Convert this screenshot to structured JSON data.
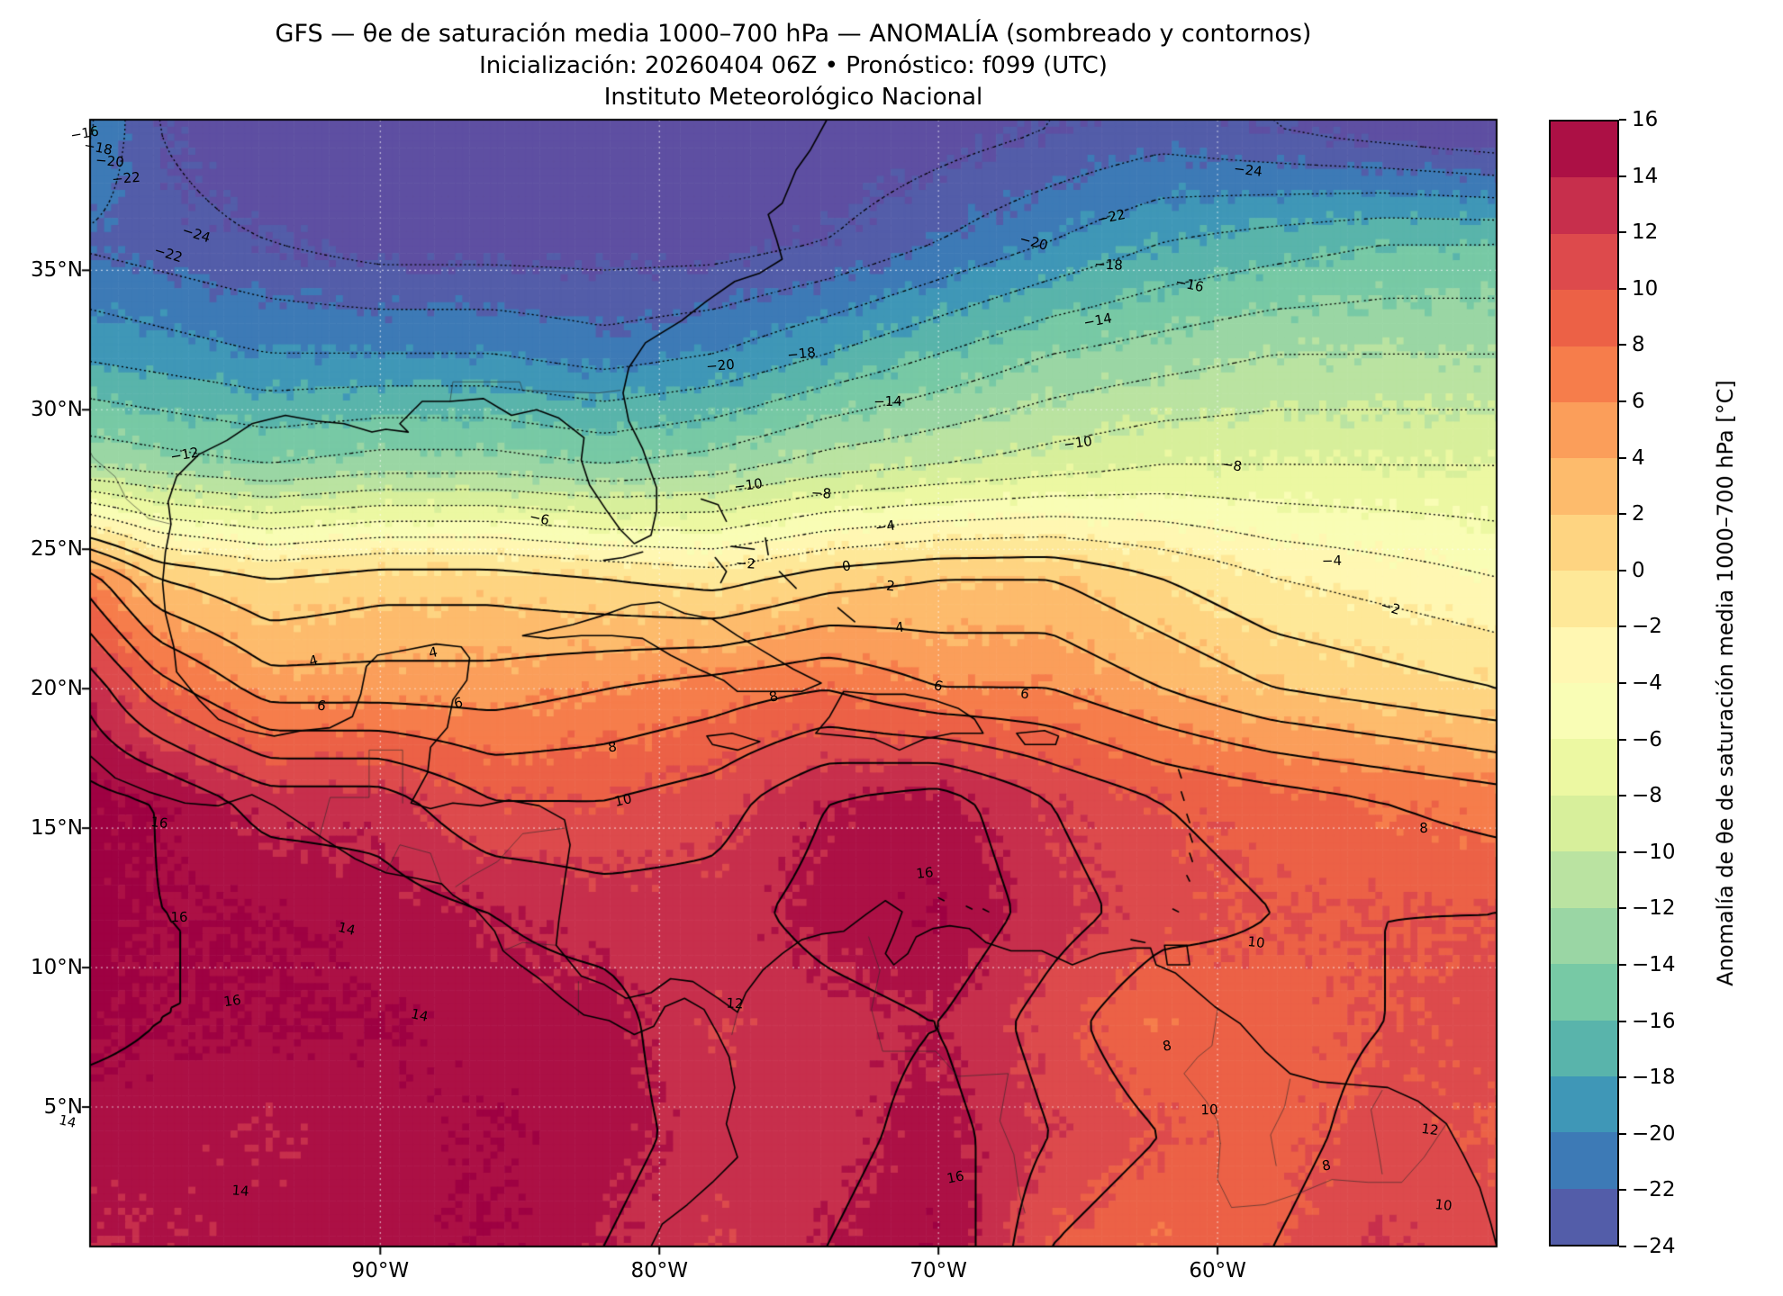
{
  "header": {
    "title": "GFS — θe de saturación media 1000–700 hPa — ANOMALÍA (sombreado y contornos)",
    "subtitle": "Inicialización: 20260404 06Z   •   Pronóstico: f099 (UTC)",
    "institution": "Instituto Meteorológico Nacional"
  },
  "chart_data": {
    "type": "heatmap",
    "title": "GFS — θe de saturación media 1000–700 hPa — ANOMALÍA (sombreado y contornos)",
    "x": {
      "ticks": [
        "90°W",
        "80°W",
        "70°W",
        "60°W"
      ],
      "tick_lons": [
        -90,
        -80,
        -70,
        -60
      ],
      "range": [
        -100.4,
        -50.0
      ]
    },
    "y": {
      "ticks": [
        "35°N",
        "30°N",
        "25°N",
        "20°N",
        "15°N",
        "10°N",
        "5°N"
      ],
      "tick_lats": [
        35,
        30,
        25,
        20,
        15,
        10,
        5
      ],
      "range": [
        0,
        40.4
      ]
    },
    "colorbar": {
      "label": "Anomalía de θe de saturación media 1000–700 hPa [°C]",
      "levels": [
        -24,
        -22,
        -20,
        -18,
        -16,
        -14,
        -12,
        -10,
        -8,
        -6,
        -4,
        -2,
        0,
        2,
        4,
        6,
        8,
        10,
        12,
        14,
        16
      ],
      "tick_labels": [
        "−24",
        "−22",
        "−20",
        "−18",
        "−16",
        "−14",
        "−12",
        "−10",
        "−8",
        "−6",
        "−4",
        "−2",
        "0",
        "2",
        "4",
        "6",
        "8",
        "10",
        "12",
        "14",
        "16"
      ],
      "colors": [
        "#535DA9",
        "#3D7AB6",
        "#3F97B7",
        "#59B4AB",
        "#77C9A5",
        "#9AD6A4",
        "#BAE3A1",
        "#D7EF9B",
        "#ECF8A2",
        "#F9FDB5",
        "#FFF7B2",
        "#FEE898",
        "#FED481",
        "#FDBB6C",
        "#FB9E5A",
        "#F67D4B",
        "#EC6146",
        "#DD4A4C",
        "#C72F4C",
        "#AC1045"
      ],
      "under_color": "#5E4FA2",
      "over_color": "#9E0142"
    },
    "contours": {
      "interval": 2,
      "min": -24,
      "max": 16,
      "negative_linestyle": "dotted",
      "nonnegative_linestyle": "solid"
    },
    "grid": {
      "units": "°C",
      "lons": [
        -102,
        -98,
        -94,
        -90,
        -86,
        -82,
        -78,
        -74,
        -70,
        -66,
        -62,
        -58,
        -54,
        -50
      ],
      "lats": [
        40,
        36,
        32,
        28,
        24,
        20,
        16,
        12,
        8,
        4,
        0
      ],
      "values": [
        [
          -17,
          -24,
          -26,
          -26,
          -26,
          -26,
          -26,
          -26,
          -25,
          -24,
          -23,
          -24,
          -25,
          -26
        ],
        [
          -22,
          -23,
          -24,
          -25,
          -25,
          -25,
          -25,
          -24,
          -22,
          -20,
          -18,
          -17,
          -16,
          -16
        ],
        [
          -18,
          -19,
          -20,
          -20,
          -20,
          -21,
          -20,
          -18,
          -16,
          -14,
          -13,
          -12,
          -12,
          -12
        ],
        [
          -12,
          -13,
          -14,
          -13,
          -13,
          -14,
          -13,
          -11,
          -10,
          -9,
          -8,
          -8,
          -8,
          -8
        ],
        [
          10,
          2,
          0,
          1,
          1,
          0,
          -1,
          1,
          2,
          2,
          0,
          -2,
          -3,
          -4
        ],
        [
          16,
          9,
          5,
          5,
          5,
          6,
          7,
          8,
          6,
          6,
          4,
          2,
          1,
          0
        ],
        [
          17,
          16,
          13,
          13,
          10,
          10,
          11,
          14,
          15,
          12,
          10,
          9,
          8,
          7
        ],
        [
          17,
          16,
          16,
          15,
          14,
          13,
          13,
          15,
          16,
          13,
          11,
          10,
          10,
          10
        ],
        [
          17,
          16,
          16,
          16,
          15,
          15,
          12,
          13,
          14,
          11,
          8,
          9,
          10,
          11
        ],
        [
          15,
          15,
          14,
          15,
          16,
          15,
          13,
          13,
          15,
          12,
          10,
          9,
          11,
          10
        ],
        [
          14,
          14,
          15,
          15,
          16,
          14,
          12,
          14,
          16,
          10,
          8,
          10,
          12,
          11
        ]
      ]
    },
    "contour_labels": [
      {
        "text": "−16",
        "lon": -100.6,
        "lat": 39.9
      },
      {
        "text": "−18",
        "lon": -100.1,
        "lat": 39.4
      },
      {
        "text": "−20",
        "lon": -99.7,
        "lat": 38.9
      },
      {
        "text": "−22",
        "lon": -99.1,
        "lat": 38.3
      },
      {
        "text": "−24",
        "lon": -96.6,
        "lat": 36.3
      },
      {
        "text": "−22",
        "lon": -97.6,
        "lat": 35.6
      },
      {
        "text": "−24",
        "lon": -58.9,
        "lat": 38.6
      },
      {
        "text": "−22",
        "lon": -63.8,
        "lat": 36.9
      },
      {
        "text": "−20",
        "lon": -66.6,
        "lat": 36.0
      },
      {
        "text": "−18",
        "lon": -63.9,
        "lat": 35.2
      },
      {
        "text": "−16",
        "lon": -61.0,
        "lat": 34.5
      },
      {
        "text": "−14",
        "lon": -64.3,
        "lat": 33.2
      },
      {
        "text": "−20",
        "lon": -77.8,
        "lat": 31.6
      },
      {
        "text": "−18",
        "lon": -74.9,
        "lat": 32.0
      },
      {
        "text": "−14",
        "lon": -71.8,
        "lat": 30.3
      },
      {
        "text": "−12",
        "lon": -97.0,
        "lat": 28.4
      },
      {
        "text": "−10",
        "lon": -76.8,
        "lat": 27.3
      },
      {
        "text": "−8",
        "lon": -74.2,
        "lat": 27.0
      },
      {
        "text": "−10",
        "lon": -65.0,
        "lat": 28.8
      },
      {
        "text": "−8",
        "lon": -59.5,
        "lat": 28.0
      },
      {
        "text": "−6",
        "lon": -84.3,
        "lat": 26.1
      },
      {
        "text": "−4",
        "lon": -71.9,
        "lat": 25.8
      },
      {
        "text": "−4",
        "lon": -55.9,
        "lat": 24.6
      },
      {
        "text": "−2",
        "lon": -53.8,
        "lat": 22.9
      },
      {
        "text": "−2",
        "lon": -76.9,
        "lat": 24.5
      },
      {
        "text": "0",
        "lon": -73.3,
        "lat": 24.4
      },
      {
        "text": "2",
        "lon": -71.7,
        "lat": 23.7
      },
      {
        "text": "4",
        "lon": -71.4,
        "lat": 22.2
      },
      {
        "text": "6",
        "lon": -66.9,
        "lat": 19.8
      },
      {
        "text": "4",
        "lon": -92.4,
        "lat": 21.0
      },
      {
        "text": "4",
        "lon": -88.1,
        "lat": 21.3
      },
      {
        "text": "6",
        "lon": -92.1,
        "lat": 19.4
      },
      {
        "text": "6",
        "lon": -87.2,
        "lat": 19.5
      },
      {
        "text": "8",
        "lon": -75.9,
        "lat": 19.7
      },
      {
        "text": "6",
        "lon": -70.0,
        "lat": 20.1
      },
      {
        "text": "8",
        "lon": -81.7,
        "lat": 17.9
      },
      {
        "text": "10",
        "lon": -81.3,
        "lat": 16.0
      },
      {
        "text": "16",
        "lon": -70.5,
        "lat": 13.4
      },
      {
        "text": "16",
        "lon": -97.9,
        "lat": 15.2
      },
      {
        "text": "16",
        "lon": -97.2,
        "lat": 11.8
      },
      {
        "text": "16",
        "lon": -95.3,
        "lat": 8.8
      },
      {
        "text": "14",
        "lon": -91.2,
        "lat": 11.4
      },
      {
        "text": "14",
        "lon": -88.6,
        "lat": 8.3
      },
      {
        "text": "14",
        "lon": -101.2,
        "lat": 4.5
      },
      {
        "text": "14",
        "lon": -95.0,
        "lat": 2.0
      },
      {
        "text": "12",
        "lon": -77.3,
        "lat": 8.7
      },
      {
        "text": "16",
        "lon": -69.4,
        "lat": 2.5
      },
      {
        "text": "10",
        "lon": -60.3,
        "lat": 4.9
      },
      {
        "text": "12",
        "lon": -52.4,
        "lat": 4.2
      },
      {
        "text": "10",
        "lon": -51.9,
        "lat": 1.5
      },
      {
        "text": "8",
        "lon": -56.1,
        "lat": 2.9
      },
      {
        "text": "8",
        "lon": -61.8,
        "lat": 7.2
      },
      {
        "text": "10",
        "lon": -58.6,
        "lat": 10.9
      },
      {
        "text": "8",
        "lon": -52.6,
        "lat": 15.0
      }
    ]
  }
}
